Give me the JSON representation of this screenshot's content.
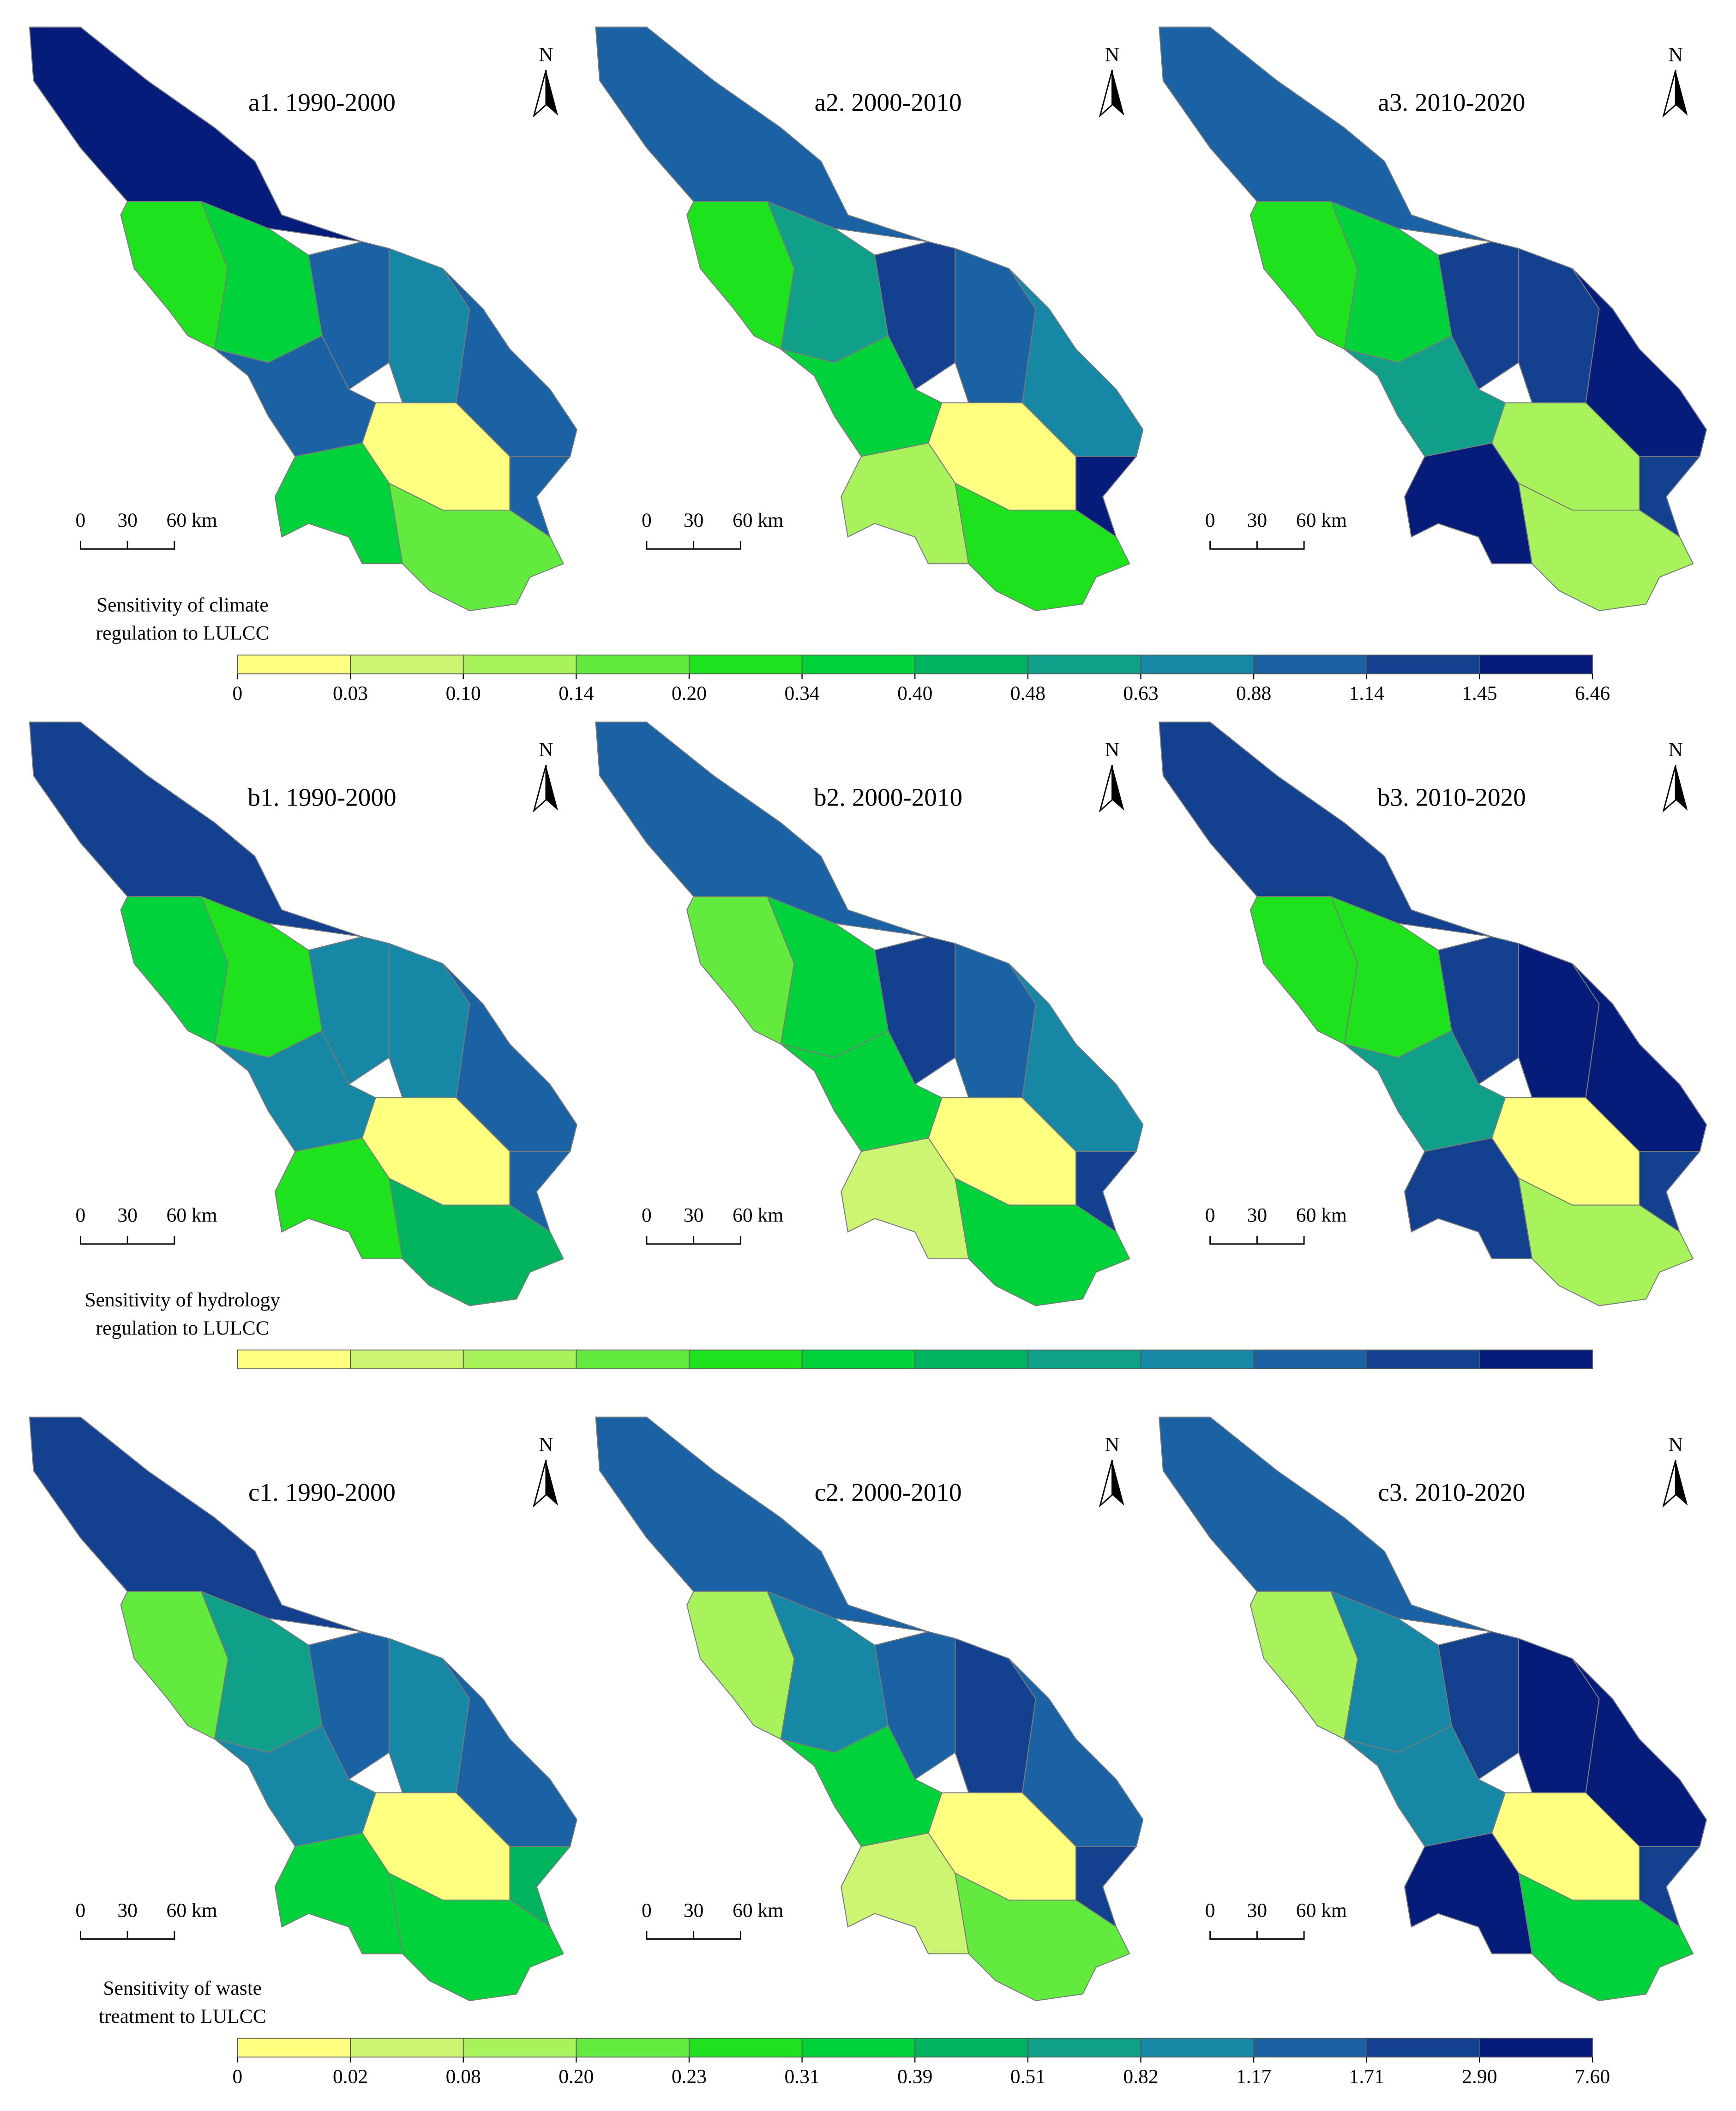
{
  "palette": [
    "#ffff80",
    "#ccf571",
    "#a8f25c",
    "#62ea3e",
    "#1ee21e",
    "#00d23c",
    "#00b45f",
    "#10a08a",
    "#1787a6",
    "#1a62a4",
    "#14418f",
    "#051c7a"
  ],
  "north": "N",
  "scale_bar": [
    "0",
    "30",
    "60 km"
  ],
  "rows": [
    {
      "panels": [
        {
          "title": "a1. 1990-2000",
          "regions": [
            11,
            4,
            5,
            9,
            8,
            9,
            9,
            0,
            9,
            5,
            3
          ]
        },
        {
          "title": "a2. 2000-2010",
          "regions": [
            9,
            4,
            7,
            10,
            9,
            8,
            5,
            0,
            11,
            2,
            4
          ]
        },
        {
          "title": "a3. 2010-2020",
          "regions": [
            9,
            4,
            5,
            10,
            10,
            11,
            7,
            2,
            10,
            11,
            2
          ]
        }
      ],
      "legend": {
        "title": [
          "Sensitivity of climate",
          "regulation to LULCC"
        ],
        "ticks": [
          0,
          0.03,
          {
            "value": 0.1,
            "label": "0.10"
          },
          0.14,
          {
            "value": 0.2,
            "label": "0.20"
          },
          0.34,
          {
            "value": 0.4,
            "label": "0.40"
          },
          0.48,
          0.63,
          0.88,
          1.14,
          1.45,
          6.46
        ]
      }
    },
    {
      "panels": [
        {
          "title": "b1. 1990-2000",
          "regions": [
            10,
            5,
            4,
            8,
            8,
            9,
            8,
            0,
            9,
            4,
            6
          ]
        },
        {
          "title": "b2. 2000-2010",
          "regions": [
            9,
            3,
            5,
            10,
            9,
            8,
            5,
            0,
            10,
            1,
            5
          ]
        },
        {
          "title": "b3. 2010-2020",
          "regions": [
            10,
            4,
            4,
            10,
            11,
            11,
            7,
            0,
            10,
            10,
            2
          ]
        }
      ],
      "legend": {
        "title": [
          "Sensitivity of hydrology",
          "regulation to LULCC"
        ],
        "ticks": []
      }
    },
    {
      "panels": [
        {
          "title": "c1. 1990-2000",
          "regions": [
            10,
            3,
            7,
            9,
            8,
            9,
            8,
            0,
            6,
            5,
            5
          ]
        },
        {
          "title": "c2. 2000-2010",
          "regions": [
            9,
            2,
            8,
            9,
            10,
            9,
            5,
            0,
            10,
            1,
            3
          ]
        },
        {
          "title": "c3. 2010-2020",
          "regions": [
            9,
            2,
            8,
            10,
            11,
            11,
            8,
            0,
            10,
            11,
            5
          ]
        }
      ],
      "legend": {
        "title": [
          "Sensitivity of waste",
          "treatment to LULCC"
        ],
        "ticks": [
          0,
          0.02,
          0.08,
          {
            "value": 0.2,
            "label": "0.20"
          },
          0.23,
          0.31,
          0.39,
          0.51,
          0.82,
          1.17,
          1.71,
          {
            "value": 2.9,
            "label": "2.90"
          },
          {
            "value": 7.6,
            "label": "7.60"
          }
        ]
      }
    }
  ]
}
